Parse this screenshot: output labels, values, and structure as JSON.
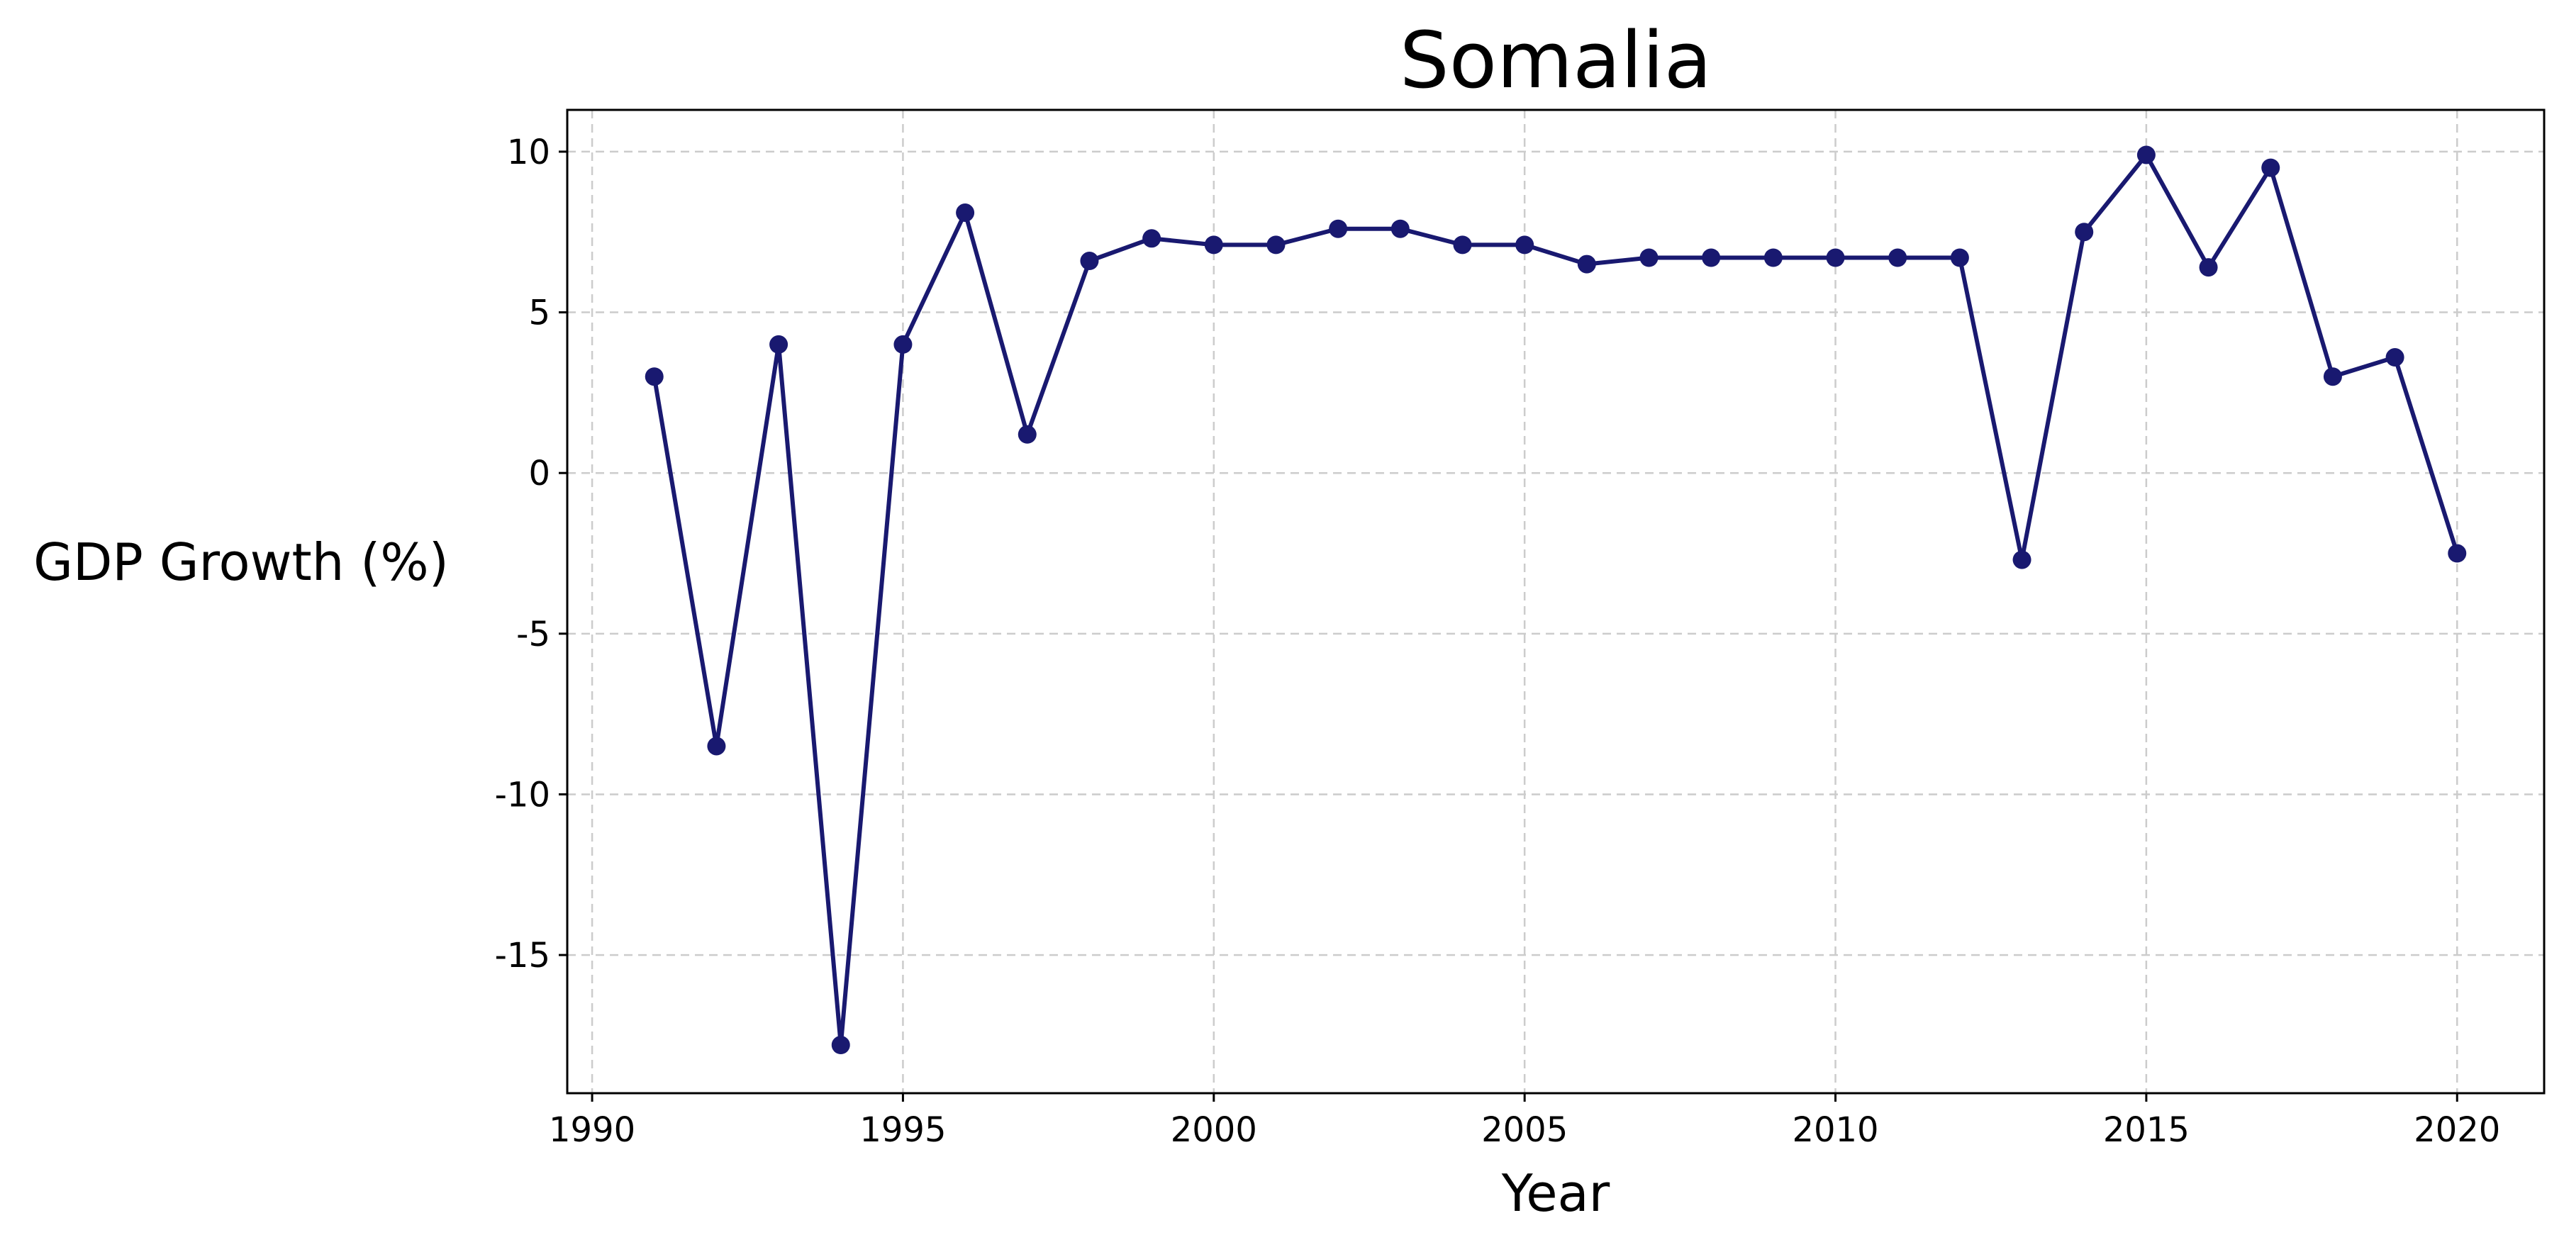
{
  "chart_data": {
    "type": "line",
    "title": "Somalia",
    "xlabel": "Year",
    "ylabel": "GDP Growth (%)",
    "xlim": [
      1989.6,
      2021.4
    ],
    "ylim": [
      -19.3,
      11.3
    ],
    "xticks": [
      1990,
      1995,
      2000,
      2005,
      2010,
      2015,
      2020
    ],
    "yticks": [
      10,
      5,
      0,
      -5,
      -10,
      -15
    ],
    "grid": true,
    "line_color": "#191970",
    "series": [
      {
        "x": [
          1991,
          1992,
          1993,
          1994,
          1995,
          1996,
          1997,
          1998,
          1999,
          2000,
          2001,
          2002,
          2003,
          2004,
          2005,
          2006,
          2007,
          2008,
          2009,
          2010,
          2011,
          2012,
          2013,
          2014,
          2015,
          2016,
          2017,
          2018,
          2019,
          2020
        ],
        "values": [
          3.0,
          -8.5,
          4.0,
          -17.8,
          4.0,
          8.1,
          1.2,
          6.6,
          7.3,
          7.1,
          7.1,
          7.6,
          7.6,
          7.1,
          7.1,
          6.5,
          6.7,
          6.7,
          6.7,
          6.7,
          6.7,
          6.7,
          -2.7,
          7.5,
          9.9,
          6.4,
          9.5,
          3.0,
          3.6,
          -2.5
        ]
      }
    ]
  }
}
